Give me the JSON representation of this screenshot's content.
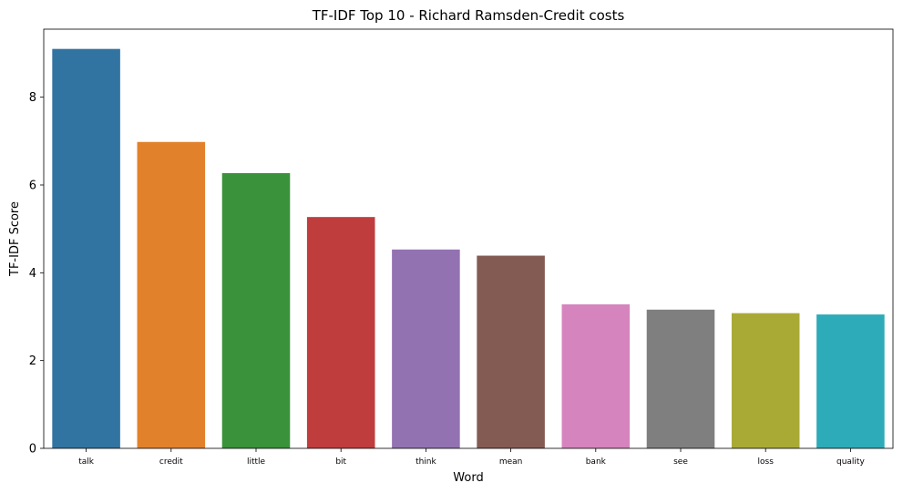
{
  "chart_data": {
    "type": "bar",
    "title": "TF-IDF Top 10 - Richard Ramsden-Credit costs",
    "xlabel": "Word",
    "ylabel": "TF-IDF Score",
    "categories": [
      "talk",
      "credit",
      "little",
      "bit",
      "think",
      "mean",
      "bank",
      "see",
      "loss",
      "quality"
    ],
    "values": [
      9.1,
      6.98,
      6.27,
      5.27,
      4.53,
      4.39,
      3.28,
      3.16,
      3.08,
      3.05
    ],
    "colors": [
      "#3274a1",
      "#e1812c",
      "#3a923a",
      "#c03d3e",
      "#9372b2",
      "#845b53",
      "#d584bd",
      "#7f7f7f",
      "#a9aa35",
      "#2eabb8"
    ],
    "ylim": [
      0,
      9.55
    ],
    "yticks": [
      0,
      2,
      4,
      6,
      8
    ],
    "grid": false,
    "legend": "none"
  }
}
